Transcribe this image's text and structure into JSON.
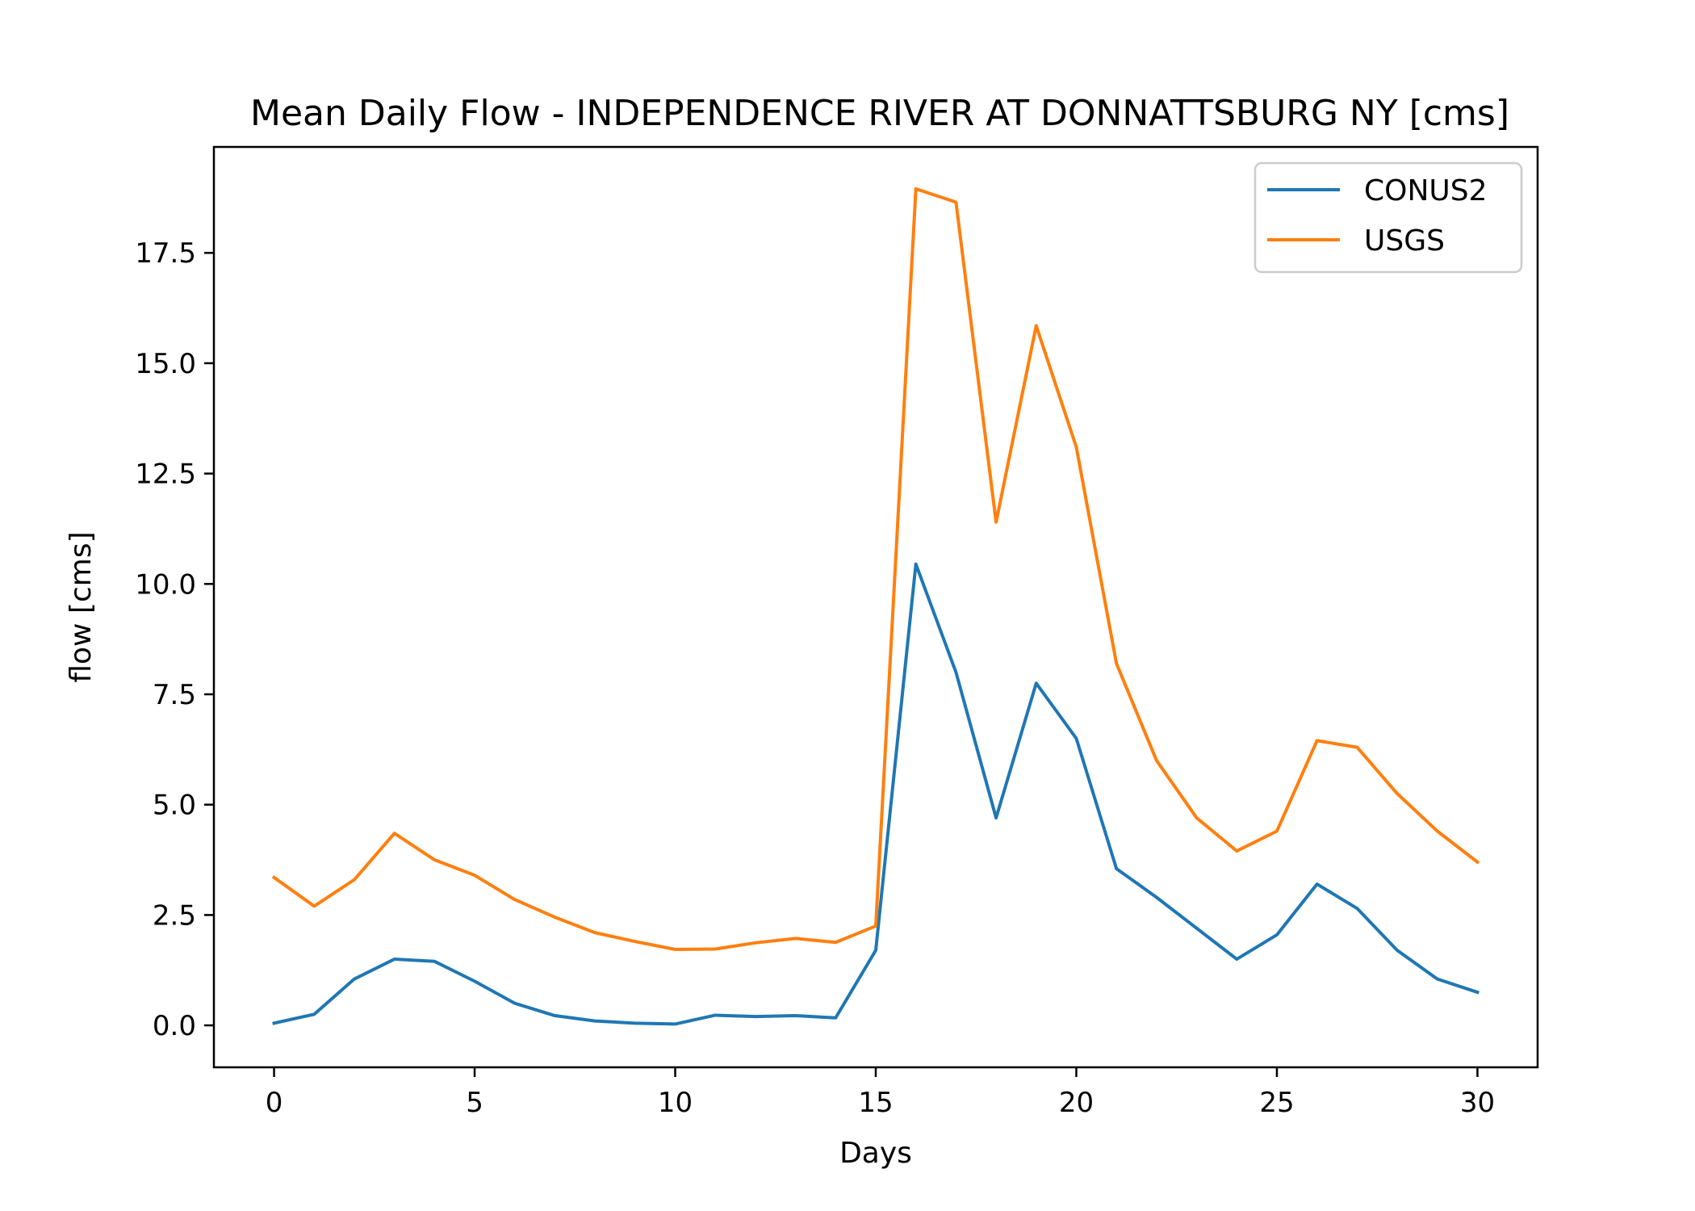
{
  "chart_data": {
    "type": "line",
    "title": "Mean Daily Flow - INDEPENDENCE RIVER AT DONNATTSBURG NY [cms]",
    "xlabel": "Days",
    "ylabel": "flow [cms]",
    "xlim": [
      -1.5,
      31.5
    ],
    "ylim": [
      -0.95,
      19.9
    ],
    "xticks": [
      0,
      5,
      10,
      15,
      20,
      25,
      30
    ],
    "xtick_labels": [
      "0",
      "5",
      "10",
      "15",
      "20",
      "25",
      "30"
    ],
    "yticks": [
      0.0,
      2.5,
      5.0,
      7.5,
      10.0,
      12.5,
      15.0,
      17.5
    ],
    "ytick_labels": [
      "0.0",
      "2.5",
      "5.0",
      "7.5",
      "10.0",
      "12.5",
      "15.0",
      "17.5"
    ],
    "grid": false,
    "legend": "top-right",
    "x": [
      0,
      1,
      2,
      3,
      4,
      5,
      6,
      7,
      8,
      9,
      10,
      11,
      12,
      13,
      14,
      15,
      16,
      17,
      18,
      19,
      20,
      21,
      22,
      23,
      24,
      25,
      26,
      27,
      28,
      29,
      30
    ],
    "series": [
      {
        "name": "CONUS2",
        "color": "#1f77b4",
        "values": [
          0.05,
          0.25,
          1.05,
          1.5,
          1.45,
          1.0,
          0.5,
          0.22,
          0.1,
          0.05,
          0.03,
          0.23,
          0.2,
          0.22,
          0.17,
          1.7,
          10.45,
          8.0,
          4.7,
          7.75,
          6.5,
          3.55,
          2.9,
          2.2,
          1.5,
          2.05,
          3.2,
          2.65,
          1.7,
          1.05,
          0.75
        ]
      },
      {
        "name": "USGS",
        "color": "#ff7f0e",
        "values": [
          3.35,
          2.7,
          3.3,
          4.35,
          3.75,
          3.4,
          2.85,
          2.45,
          2.1,
          1.9,
          1.72,
          1.73,
          1.87,
          1.97,
          1.88,
          2.25,
          18.95,
          18.65,
          11.4,
          15.85,
          13.1,
          8.2,
          6.0,
          4.7,
          3.95,
          4.4,
          6.45,
          6.3,
          5.25,
          4.4,
          3.7
        ]
      }
    ]
  }
}
